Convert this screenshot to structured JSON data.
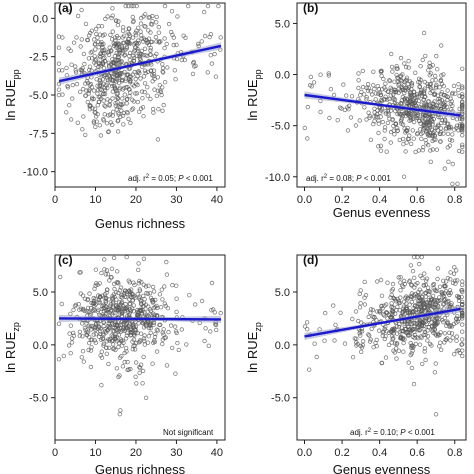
{
  "colors": {
    "points": "#555555",
    "line": "#1a1acc",
    "band": "#9aa0c8",
    "axis": "#222222"
  },
  "chart_data": [
    {
      "type": "scatter",
      "panel": "(a)",
      "xlabel": "Genus richness",
      "ylabel_main": "ln RUE",
      "ylabel_sub": "pp",
      "xlim": [
        0,
        42
      ],
      "ylim": [
        -11,
        1
      ],
      "xticks": [
        0,
        10,
        20,
        30,
        40
      ],
      "xtick_labels": [
        "0",
        "10",
        "20",
        "30",
        "40"
      ],
      "yticks": [
        0,
        -2.5,
        -5,
        -7.5,
        -10
      ],
      "ytick_labels": [
        "0.0",
        "-2.5",
        "-5.0",
        "-7.5",
        "-10.0"
      ],
      "fit_line": {
        "x": [
          1,
          41
        ],
        "y": [
          -4.1,
          -1.8
        ]
      },
      "annotation": {
        "pre": "adj. r",
        "sup": "2",
        "mid": " = 0.05; ",
        "p": "P",
        "post": " < 0.001"
      },
      "scatter_model": {
        "x_center": 16,
        "x_spread": 6,
        "x_min": 1,
        "x_max": 41,
        "y_spread": 1.7,
        "n": 620,
        "seed": 11
      }
    },
    {
      "type": "scatter",
      "panel": "(b)",
      "xlabel": "Genus evenness",
      "ylabel_main": "ln RUE",
      "ylabel_sub": "pp",
      "xlim": [
        -0.04,
        0.86
      ],
      "ylim": [
        -11,
        7
      ],
      "xticks": [
        0,
        0.2,
        0.4,
        0.6,
        0.8
      ],
      "xtick_labels": [
        "0.0",
        "0.2",
        "0.4",
        "0.6",
        "0.8"
      ],
      "yticks": [
        5,
        0,
        -5,
        -10
      ],
      "ytick_labels": [
        "5.0",
        "0.0",
        "-5.0",
        "-10.0"
      ],
      "fit_line": {
        "x": [
          0,
          0.83
        ],
        "y": [
          -2.0,
          -4.0
        ]
      },
      "annotation": {
        "pre": "adj. r",
        "sup": "2",
        "mid": " = 0.08; ",
        "p": "P",
        "post": " < 0.001"
      },
      "scatter_model": {
        "x_center": 0.6,
        "x_spread": 0.14,
        "x_min": 0.0,
        "x_max": 0.84,
        "y_spread": 1.8,
        "n": 640,
        "seed": 23
      }
    },
    {
      "type": "scatter",
      "panel": "(c)",
      "xlabel": "Genus richness",
      "ylabel_main": "ln RUE",
      "ylabel_sub": "zp",
      "xlim": [
        0,
        42
      ],
      "ylim": [
        -9,
        8.5
      ],
      "xticks": [
        0,
        10,
        20,
        30,
        40
      ],
      "xtick_labels": [
        "0",
        "10",
        "20",
        "30",
        "40"
      ],
      "yticks": [
        5,
        0,
        -5
      ],
      "ytick_labels": [
        "5.0",
        "0.0",
        "-5.0"
      ],
      "fit_line": {
        "x": [
          1,
          41
        ],
        "y": [
          2.5,
          2.4
        ]
      },
      "annotation": {
        "pre": "Not significant",
        "sup": "",
        "mid": "",
        "p": "",
        "post": ""
      },
      "scatter_model": {
        "x_center": 16,
        "x_spread": 6,
        "x_min": 1,
        "x_max": 41,
        "y_spread": 1.9,
        "n": 620,
        "seed": 37
      }
    },
    {
      "type": "scatter",
      "panel": "(d)",
      "xlabel": "Genus evenness",
      "ylabel_main": "ln RUE",
      "ylabel_sub": "zp",
      "xlim": [
        -0.04,
        0.86
      ],
      "ylim": [
        -9,
        8.5
      ],
      "xticks": [
        0,
        0.2,
        0.4,
        0.6,
        0.8
      ],
      "xtick_labels": [
        "0.0",
        "0.2",
        "0.4",
        "0.6",
        "0.8"
      ],
      "yticks": [
        5,
        0,
        -5
      ],
      "ytick_labels": [
        "5.0",
        "0.0",
        "-5.0"
      ],
      "fit_line": {
        "x": [
          0,
          0.83
        ],
        "y": [
          0.8,
          3.4
        ]
      },
      "annotation": {
        "pre": "adj. r",
        "sup": "2",
        "mid": " = 0.10; ",
        "p": "P",
        "post": " < 0.001"
      },
      "scatter_model": {
        "x_center": 0.6,
        "x_spread": 0.14,
        "x_min": 0.0,
        "x_max": 0.84,
        "y_spread": 1.8,
        "n": 640,
        "seed": 53
      }
    }
  ]
}
